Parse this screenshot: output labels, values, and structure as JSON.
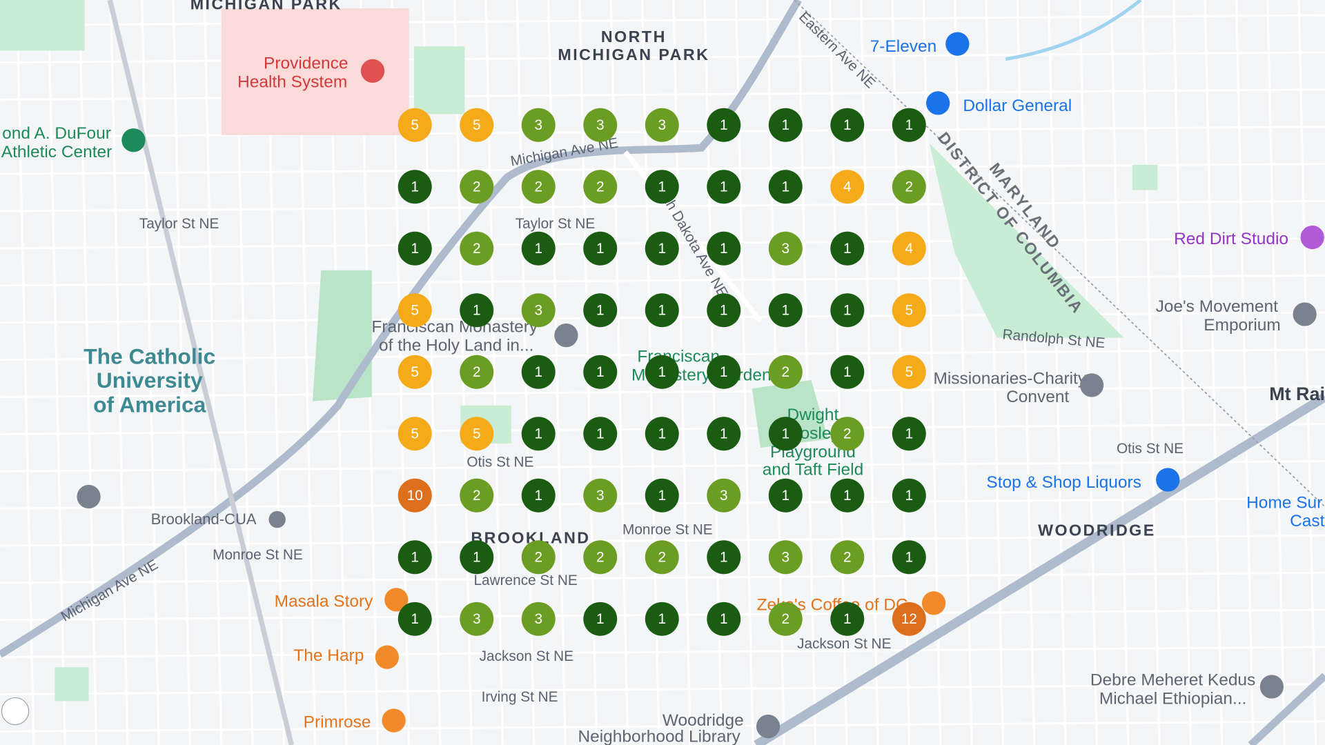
{
  "grid": {
    "rows": [
      [
        5,
        5,
        3,
        3,
        3,
        1,
        1,
        1,
        1
      ],
      [
        1,
        2,
        2,
        2,
        1,
        1,
        1,
        4,
        2
      ],
      [
        1,
        2,
        1,
        1,
        1,
        1,
        3,
        1,
        4
      ],
      [
        5,
        1,
        3,
        1,
        1,
        1,
        1,
        1,
        5
      ],
      [
        5,
        2,
        1,
        1,
        1,
        1,
        2,
        1,
        5
      ],
      [
        5,
        5,
        1,
        1,
        1,
        1,
        1,
        2,
        1
      ],
      [
        10,
        2,
        1,
        3,
        1,
        3,
        1,
        1,
        1
      ],
      [
        1,
        1,
        2,
        2,
        2,
        1,
        3,
        2,
        1
      ],
      [
        1,
        3,
        3,
        1,
        1,
        1,
        2,
        1,
        12
      ]
    ]
  },
  "map_labels": [
    "MICHIGAN PARK",
    "NORTH",
    "MICHIGAN PARK",
    "Providence",
    "Health System",
    "7-Eleven",
    "Dollar General",
    "ond A. DuFour",
    "Athletic Center",
    "Taylor St NE",
    "Taylor St NE",
    "Michigan Ave NE",
    "The Catholic",
    "University",
    "of America",
    "Franciscan Monastery",
    "of the Holy Land in...",
    "Franciscan",
    "Monastery Garden",
    "Dwight",
    "Mosley",
    "Playground",
    "and Taft Field",
    "Missionaries-Charity",
    "Convent",
    "Mt Rai",
    "Red Dirt Studio",
    "Joe's Movement",
    "Emporium",
    "Randolph St NE",
    "Otis St NE",
    "Otis St NE",
    "Stop & Shop Liquors",
    "WOODRIDGE",
    "BROOKLAND",
    "Monroe St NE",
    "Monroe St NE",
    "Brookland-CUA",
    "Masala Story",
    "The Harp",
    "Primrose",
    "Lawrence St NE",
    "Jackson St NE",
    "Jackson St NE",
    "Irving St NE",
    "Woodridge",
    "Neighborhood Library",
    "Debre Meheret Kedus",
    "Michael Ethiopian...",
    "Zeke's Coffee of DC",
    "MARYLAND",
    "DISTRICT OF COLUMBIA",
    "Eastern Ave NE",
    "South Dakota Ave NE",
    "Michigan Ave NE",
    "Home Sur",
    "Cast"
  ]
}
